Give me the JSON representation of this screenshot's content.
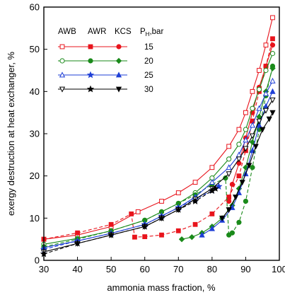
{
  "chart_data": {
    "type": "line",
    "xlabel": "ammonia mass fraction, %",
    "ylabel": "exergy destruction at heat exchanger, %",
    "xlim": [
      30,
      100
    ],
    "ylim": [
      0,
      60
    ],
    "xticks": [
      30,
      40,
      50,
      60,
      70,
      80,
      90,
      100
    ],
    "yticks": [
      0,
      10,
      20,
      30,
      40,
      50,
      60
    ],
    "grid": false,
    "legend_position": "top-left",
    "legend_headers": {
      "awb": "AWB",
      "awr": "AWR",
      "kcs": "KCS",
      "pressure_main": "P",
      "pressure_sub": "H",
      "pressure_unit": ",bar"
    },
    "series": [
      {
        "cycle": "AWB",
        "pressure": "15",
        "color": "#e8141c",
        "marker": "square-open",
        "line": "solid",
        "x": [
          30,
          40,
          50,
          58,
          65,
          70,
          75,
          80,
          85,
          88,
          90,
          92,
          94,
          96,
          98
        ],
        "y": [
          5,
          6,
          8,
          11.5,
          14,
          16,
          18.5,
          22,
          27,
          31,
          35,
          40,
          45,
          51,
          57.5
        ]
      },
      {
        "cycle": "AWR",
        "pressure": "15",
        "color": "#e8141c",
        "marker": "square-filled",
        "line": "dash",
        "x": [
          30,
          40,
          50,
          56,
          57,
          60,
          65,
          70,
          75,
          80,
          85,
          88,
          90,
          92,
          94,
          96,
          98
        ],
        "y": [
          5,
          6.5,
          8.5,
          11,
          5.5,
          5.6,
          6,
          7,
          8.5,
          11,
          15,
          20,
          26,
          33,
          40,
          46,
          52.5
        ]
      },
      {
        "cycle": "KCS",
        "pressure": "15",
        "color": "#e8141c",
        "marker": "circle-filled",
        "line": "solid",
        "x": [
          85,
          86,
          88,
          90,
          92,
          94,
          96,
          98
        ],
        "y": [
          14,
          18,
          23,
          29,
          35,
          41,
          46,
          51
        ]
      },
      {
        "cycle": "AWB",
        "pressure": "20",
        "color": "#1a8a1a",
        "marker": "circle-open",
        "line": "solid",
        "x": [
          30,
          40,
          50,
          60,
          65,
          70,
          75,
          80,
          85,
          88,
          90,
          92,
          94,
          96,
          98
        ],
        "y": [
          3.8,
          5.2,
          7,
          9.5,
          11.5,
          13.5,
          16,
          19.5,
          24,
          27.5,
          31,
          36,
          40.5,
          45,
          49
        ]
      },
      {
        "cycle": "AWR",
        "pressure": "20",
        "color": "#1a8a1a",
        "marker": "circle-filled",
        "line": "dash",
        "x": [
          30,
          40,
          50,
          60,
          65,
          70,
          75,
          80,
          84,
          85,
          86,
          88,
          90,
          92,
          94,
          96,
          98
        ],
        "y": [
          3.2,
          5,
          7,
          9.5,
          11.5,
          13.5,
          15.5,
          18,
          19.5,
          6,
          6.5,
          9,
          14,
          22,
          31,
          39,
          46
        ]
      },
      {
        "cycle": "KCS",
        "pressure": "20",
        "color": "#1a8a1a",
        "marker": "diamond-filled",
        "line": "solid",
        "x": [
          71,
          74,
          77,
          80,
          83,
          86,
          88,
          90,
          92,
          94,
          96,
          98
        ],
        "y": [
          5,
          5.5,
          6.5,
          8,
          10,
          13,
          17,
          22,
          28,
          34,
          40,
          45.5
        ]
      },
      {
        "cycle": "AWB",
        "pressure": "25",
        "color": "#1f3fd6",
        "marker": "triangle-up-open",
        "line": "solid",
        "x": [
          30,
          40,
          50,
          60,
          65,
          70,
          75,
          80,
          85,
          88,
          90,
          92,
          94,
          96,
          98
        ],
        "y": [
          3,
          4.6,
          6.4,
          8.5,
          10.5,
          12.5,
          15,
          18.5,
          22,
          25,
          28.5,
          32,
          36,
          39.5,
          42.5
        ]
      },
      {
        "cycle": "AWR",
        "pressure": "25",
        "color": "#1f3fd6",
        "marker": "star-filled",
        "line": "dash",
        "x": [
          30,
          40,
          50,
          60,
          65,
          70,
          75,
          80,
          82
        ],
        "y": [
          2.6,
          4.6,
          6.4,
          8.5,
          10.5,
          12.5,
          14.5,
          16.5,
          17.5
        ]
      },
      {
        "cycle": "KCS",
        "pressure": "25",
        "color": "#1f3fd6",
        "marker": "triangle-up-filled",
        "line": "solid",
        "x": [
          77,
          80,
          83,
          86,
          88,
          90,
          92,
          94,
          96,
          98
        ],
        "y": [
          6,
          7.5,
          9.5,
          12.5,
          16,
          20.5,
          26,
          32,
          36.5,
          40
        ]
      },
      {
        "cycle": "AWB",
        "pressure": "30",
        "color": "#000000",
        "marker": "triangle-down-open",
        "line": "solid",
        "x": [
          30,
          40,
          50,
          60,
          65,
          70,
          75,
          80,
          85,
          88,
          90,
          92,
          94,
          96,
          98
        ],
        "y": [
          2,
          4,
          6,
          8,
          10,
          12,
          14.5,
          17,
          20.5,
          24,
          26.5,
          29.5,
          33,
          35.5,
          38
        ]
      },
      {
        "cycle": "AWR",
        "pressure": "30",
        "color": "#000000",
        "marker": "star-filled",
        "line": "dash",
        "x": [
          30,
          40,
          50,
          60,
          65,
          70,
          75,
          80,
          81
        ],
        "y": [
          1.5,
          4,
          6,
          8,
          10,
          12,
          14,
          16.5,
          17
        ]
      },
      {
        "cycle": "KCS",
        "pressure": "30",
        "color": "#000000",
        "marker": "triangle-down-filled",
        "line": "solid",
        "x": [
          83,
          85,
          87,
          89,
          91,
          93,
          95,
          97,
          98
        ],
        "y": [
          10,
          12,
          15,
          18.5,
          22.5,
          27,
          31,
          33.5,
          35
        ]
      }
    ],
    "legend_rows": [
      {
        "label": "15",
        "markers": [
          "square-open",
          "square-filled",
          "circle-filled"
        ],
        "color": "#e8141c"
      },
      {
        "label": "20",
        "markers": [
          "circle-open",
          "circle-filled",
          "diamond-filled"
        ],
        "color": "#1a8a1a"
      },
      {
        "label": "25",
        "markers": [
          "triangle-up-open",
          "star-filled",
          "triangle-up-filled"
        ],
        "color": "#1f3fd6"
      },
      {
        "label": "30",
        "markers": [
          "triangle-down-open",
          "star-filled",
          "triangle-down-filled"
        ],
        "color": "#000000"
      }
    ]
  }
}
